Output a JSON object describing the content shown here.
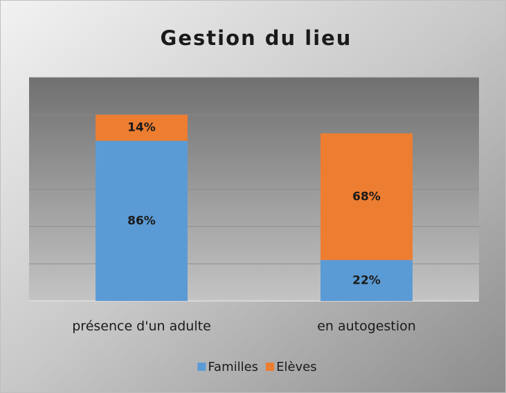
{
  "chart_data": {
    "type": "stacked_bar",
    "title": "Gestion du lieu",
    "categories": [
      "présence d'un adulte",
      "en autogestion"
    ],
    "series": [
      {
        "name": "Familles",
        "color": "#5b9bd5",
        "values": [
          86,
          22
        ],
        "value_labels": [
          "86%",
          "22%"
        ]
      },
      {
        "name": "Elèves",
        "color": "#ed7d31",
        "values": [
          14,
          68
        ],
        "value_labels": [
          "14%",
          "68%"
        ]
      }
    ],
    "ylim": [
      0,
      120
    ],
    "yticks": [
      0,
      20,
      40,
      60,
      80,
      100,
      120
    ],
    "grid": true,
    "legend": "bottom"
  }
}
